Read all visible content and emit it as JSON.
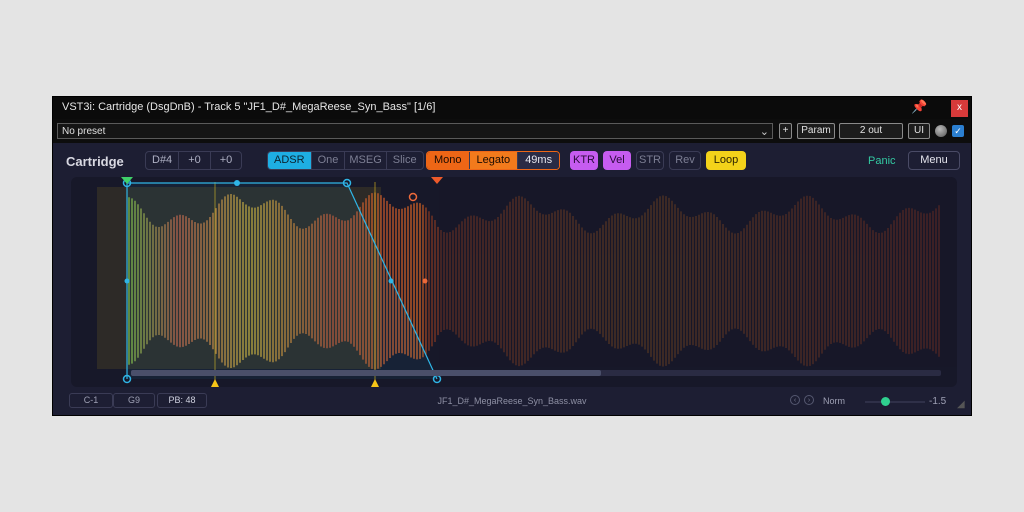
{
  "window": {
    "title": "VST3i: Cartridge (DsgDnB) - Track 5 \"JF1_D#_MegaReese_Syn_Bass\" [1/6]",
    "pin_icon": "pin-icon",
    "close_label": "x"
  },
  "host": {
    "preset": "No preset",
    "plus_label": "+",
    "param_label": "Param",
    "out_label": "2 out",
    "ui_label": "UI"
  },
  "plugin": {
    "name": "Cartridge",
    "note": "D#4",
    "offset1": "+0",
    "offset2": "+0",
    "modes": [
      "ADSR",
      "One",
      "MSEG",
      "Slice"
    ],
    "mono": "Mono",
    "legato": "Legato",
    "glide": "49ms",
    "ktr": "KTR",
    "vel": "Vel",
    "str": "STR",
    "rev": "Rev",
    "loop": "Loop",
    "panic": "Panic",
    "menu": "Menu"
  },
  "footer": {
    "range_low": "C-1",
    "range_high": "G9",
    "pb": "PB: 48",
    "filename": "JF1_D#_MegaReese_Syn_Bass.wav",
    "norm": "Norm",
    "gain": "-1.5"
  },
  "colors": {
    "accent_cyan": "#1eaee3",
    "accent_orange": "#ee6616",
    "accent_purple": "#c65cf0",
    "accent_yellow": "#f3d21a",
    "panic_green": "#33c9a2"
  }
}
